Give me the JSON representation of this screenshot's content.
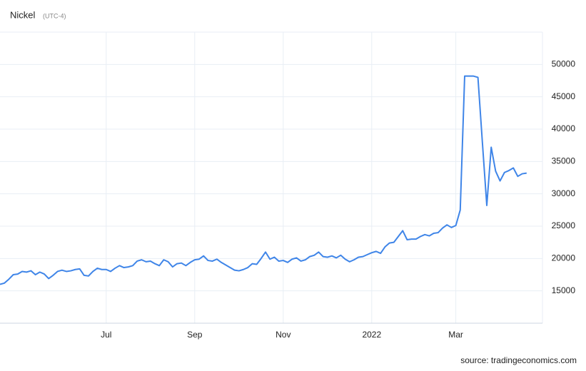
{
  "chart_data": {
    "type": "line",
    "title": "Nickel",
    "subtitle": "(UTC-4)",
    "source": "source: tradingeconomics.com",
    "categories": [
      null,
      null,
      null,
      null,
      null,
      null,
      null,
      null,
      null,
      null,
      null,
      null,
      null,
      null,
      null,
      null,
      null,
      null,
      null,
      null,
      null,
      null,
      null,
      null,
      "Jul",
      null,
      null,
      null,
      null,
      null,
      null,
      null,
      null,
      null,
      null,
      null,
      null,
      null,
      null,
      null,
      null,
      null,
      null,
      null,
      "Sep",
      null,
      null,
      null,
      null,
      null,
      null,
      null,
      null,
      null,
      null,
      null,
      null,
      null,
      null,
      null,
      null,
      null,
      null,
      null,
      "Nov",
      null,
      null,
      null,
      null,
      null,
      null,
      null,
      null,
      null,
      null,
      null,
      null,
      null,
      null,
      null,
      null,
      null,
      null,
      null,
      "2022",
      null,
      null,
      null,
      null,
      null,
      null,
      null,
      null,
      null,
      null,
      null,
      null,
      null,
      null,
      null,
      null,
      null,
      null,
      "Mar",
      null,
      null,
      null,
      null,
      null,
      null,
      null,
      null,
      null,
      null,
      null,
      null,
      null,
      null,
      null,
      null
    ],
    "series": [
      {
        "name": "Nickel",
        "color": "#3f85e8",
        "values": [
          16000,
          16200,
          16800,
          17500,
          17600,
          18000,
          17900,
          18100,
          17500,
          17900,
          17600,
          16900,
          17400,
          18000,
          18200,
          18000,
          18100,
          18300,
          18400,
          17400,
          17300,
          18000,
          18500,
          18300,
          18300,
          18000,
          18500,
          18900,
          18600,
          18700,
          18900,
          19600,
          19800,
          19500,
          19600,
          19200,
          18900,
          19800,
          19500,
          18700,
          19200,
          19300,
          18900,
          19400,
          19800,
          19900,
          20400,
          19700,
          19600,
          19900,
          19400,
          19000,
          18600,
          18200,
          18100,
          18300,
          18600,
          19200,
          19100,
          20000,
          21000,
          19900,
          20200,
          19600,
          19700,
          19400,
          19900,
          20100,
          19600,
          19800,
          20300,
          20500,
          21000,
          20300,
          20200,
          20400,
          20100,
          20500,
          19900,
          19500,
          19800,
          20200,
          20300,
          20600,
          20900,
          21100,
          20800,
          21800,
          22400,
          22500,
          23400,
          24300,
          22900,
          23000,
          23000,
          23400,
          23700,
          23500,
          23900,
          24000,
          24700,
          25200,
          24800,
          25100,
          27500,
          48200,
          48200,
          48200,
          48000,
          38000,
          28200,
          37200,
          33500,
          32000,
          33300,
          33600,
          34000,
          32700,
          33100,
          33200
        ]
      }
    ],
    "ylim": [
      10000,
      55000
    ],
    "yticks": [
      15000,
      20000,
      25000,
      30000,
      35000,
      40000,
      45000,
      50000
    ],
    "grid": true
  }
}
